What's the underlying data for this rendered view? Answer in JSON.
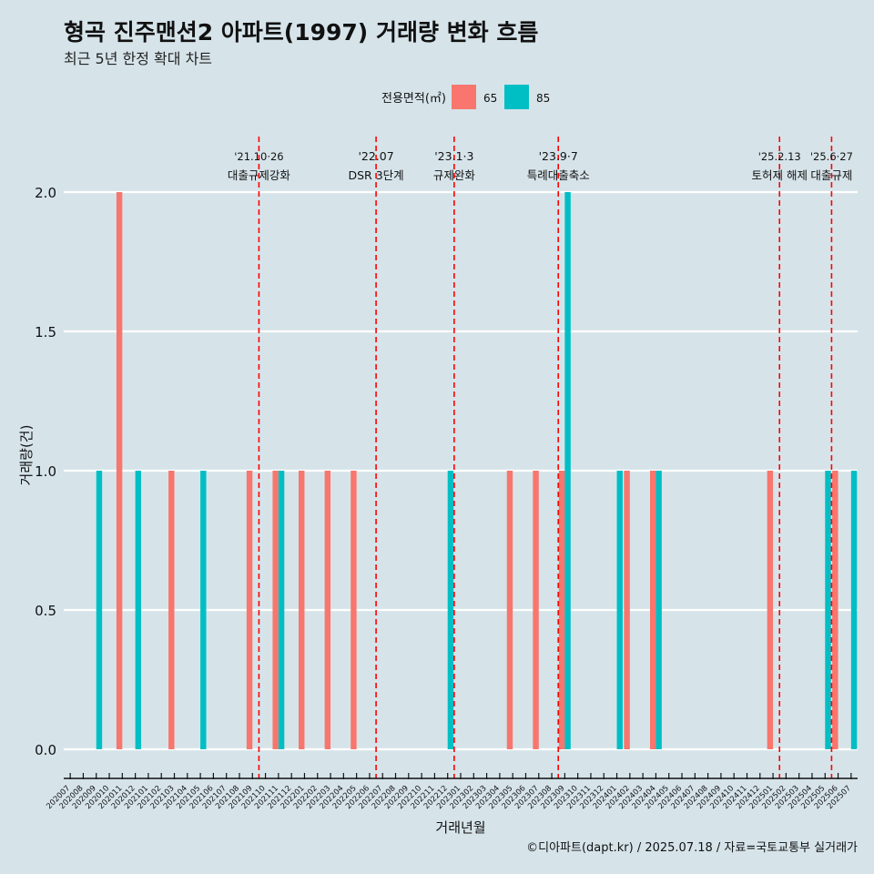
{
  "chart_data": {
    "type": "bar",
    "title": "형곡 진주맨션2 아파트(1997) 거래량 변화 흐름",
    "subtitle": "최근 5년 한정 확대 차트",
    "xlabel": "거래년월",
    "ylabel": "거래량(건)",
    "caption": "©디아파트(dapt.kr) / 2025.07.18 / 자료=국토교통부 실거래가",
    "legend": {
      "title": "전용면적(㎡)",
      "position": "top"
    },
    "ylim": [
      0,
      2
    ],
    "yticks": [
      0.0,
      0.5,
      1.0,
      1.5,
      2.0
    ],
    "ytick_labels": [
      "0.0",
      "0.5",
      "1.0",
      "1.5",
      "2.0"
    ],
    "categories": [
      "202007",
      "202008",
      "202009",
      "202010",
      "202011",
      "202012",
      "202101",
      "202102",
      "202103",
      "202104",
      "202105",
      "202106",
      "202107",
      "202108",
      "202109",
      "202110",
      "202111",
      "202112",
      "202201",
      "202202",
      "202203",
      "202204",
      "202205",
      "202206",
      "202207",
      "202208",
      "202209",
      "202210",
      "202211",
      "202212",
      "202301",
      "202302",
      "202303",
      "202304",
      "202305",
      "202306",
      "202307",
      "202308",
      "202309",
      "202310",
      "202311",
      "202312",
      "202401",
      "202402",
      "202403",
      "202404",
      "202405",
      "202406",
      "202407",
      "202408",
      "202409",
      "202410",
      "202411",
      "202412",
      "202501",
      "202502",
      "202503",
      "202504",
      "202505",
      "202506",
      "202507"
    ],
    "series": [
      {
        "name": "65",
        "color": "#F8766D",
        "values": [
          0,
          0,
          0,
          0,
          2,
          0,
          0,
          0,
          1,
          0,
          0,
          0,
          0,
          0,
          1,
          0,
          1,
          0,
          1,
          0,
          1,
          0,
          1,
          0,
          0,
          0,
          0,
          0,
          0,
          0,
          0,
          0,
          0,
          0,
          1,
          0,
          1,
          0,
          1,
          0,
          0,
          0,
          0,
          1,
          0,
          1,
          0,
          0,
          0,
          0,
          0,
          0,
          0,
          0,
          1,
          0,
          0,
          0,
          0,
          1,
          0
        ]
      },
      {
        "name": "85",
        "color": "#00BFC4",
        "values": [
          0,
          0,
          1,
          0,
          0,
          1,
          0,
          0,
          0,
          0,
          1,
          0,
          0,
          0,
          0,
          0,
          1,
          0,
          0,
          0,
          0,
          0,
          0,
          0,
          0,
          0,
          0,
          0,
          0,
          1,
          0,
          0,
          0,
          0,
          0,
          0,
          0,
          0,
          2,
          0,
          0,
          0,
          1,
          0,
          0,
          1,
          0,
          0,
          0,
          0,
          0,
          0,
          0,
          0,
          0,
          0,
          0,
          0,
          1,
          0,
          1
        ]
      }
    ],
    "annotations": [
      {
        "x": "202110",
        "line1": "'21.10·26",
        "line2": "대출규제강화"
      },
      {
        "x": "202207",
        "line1": "'22.07",
        "line2": "DSR 3단계"
      },
      {
        "x": "202301",
        "line1": "'23.1·3",
        "line2": "규제완화"
      },
      {
        "x": "202309",
        "line1": "'23.9·7",
        "line2": "특례대출축소"
      },
      {
        "x": "202502",
        "line1": "'25.2.13",
        "line2": "토허제 해제"
      },
      {
        "x": "202506",
        "line1": "'25.6·27",
        "line2": "대출규제"
      }
    ],
    "grid": true
  }
}
